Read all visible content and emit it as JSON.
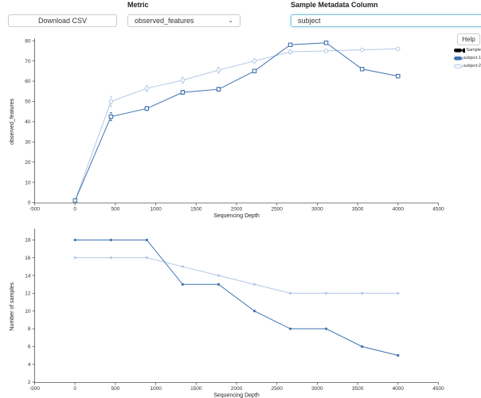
{
  "toolbar": {
    "download_label": "Download CSV",
    "metric_label": "Metric",
    "metric_value": "observed_features",
    "column_label": "Sample Metadata Column",
    "column_value": "subject"
  },
  "help_label": "Help",
  "icons": {
    "chevron_down": "⌄"
  },
  "colors": {
    "series_dark": "#3e72b0",
    "series_light": "#b3c8e6",
    "axis": "#555",
    "tick_text": "#333"
  },
  "legend": {
    "entries": [
      {
        "label": "Sample",
        "line": "#000000",
        "point": "#000000",
        "hollow": false
      },
      {
        "label": "subject-1",
        "line": "#3e72b0",
        "point": "#2f66a8",
        "hollow": false
      },
      {
        "label": "subject-2",
        "line": "#b3c8e6",
        "point": "#b3c8e6",
        "hollow": true
      }
    ]
  },
  "chart_data": [
    {
      "type": "line",
      "title": "",
      "xlabel": "Sequencing Depth",
      "ylabel": "observed_features",
      "xlim": [
        -500,
        4500
      ],
      "ylim": [
        0,
        80
      ],
      "xticks": [
        -500,
        0,
        500,
        1000,
        1500,
        2000,
        2500,
        3000,
        3500,
        4000,
        4500
      ],
      "yticks": [
        0,
        10,
        20,
        30,
        40,
        50,
        60,
        70,
        80
      ],
      "grid": false,
      "x": [
        1,
        445,
        889,
        1333,
        1778,
        2222,
        2666,
        3110,
        3555,
        4000
      ],
      "series": [
        {
          "name": "subject-1",
          "color": "#3e72b0",
          "marker": "square",
          "values": [
            1,
            42.5,
            46.5,
            54.5,
            56,
            65,
            78,
            79,
            66,
            62.5
          ],
          "errors": [
            0,
            2,
            1,
            1,
            1,
            0.5,
            0.5,
            0.5,
            0.5,
            0.5
          ]
        },
        {
          "name": "subject-2",
          "color": "#b3c8e6",
          "marker": "circle",
          "values": [
            1,
            50,
            56.5,
            60.5,
            65.5,
            70,
            74.5,
            75,
            75.5,
            76
          ],
          "errors": [
            0,
            2.5,
            1.5,
            1.5,
            1.5,
            1,
            1,
            0.5,
            0.5,
            0.5
          ]
        }
      ]
    },
    {
      "type": "line",
      "title": "",
      "xlabel": "Sequencing Depth",
      "ylabel": "Number of samples",
      "xlim": [
        -500,
        4500
      ],
      "ylim": [
        2,
        19
      ],
      "xticks": [
        -500,
        0,
        500,
        1000,
        1500,
        2000,
        2500,
        3000,
        3500,
        4000,
        4500
      ],
      "yticks": [
        2,
        4,
        6,
        8,
        10,
        12,
        14,
        16,
        18
      ],
      "grid": false,
      "x": [
        1,
        445,
        889,
        1333,
        1778,
        2222,
        2666,
        3110,
        3555,
        4000
      ],
      "series": [
        {
          "name": "subject-1",
          "color": "#3e72b0",
          "marker": "dot",
          "values": [
            18,
            18,
            18,
            13,
            13,
            10,
            8,
            8,
            6,
            5
          ]
        },
        {
          "name": "subject-2",
          "color": "#b3c8e6",
          "marker": "dot",
          "values": [
            16,
            16,
            16,
            15,
            14,
            13,
            12,
            12,
            12,
            12
          ]
        }
      ]
    }
  ]
}
